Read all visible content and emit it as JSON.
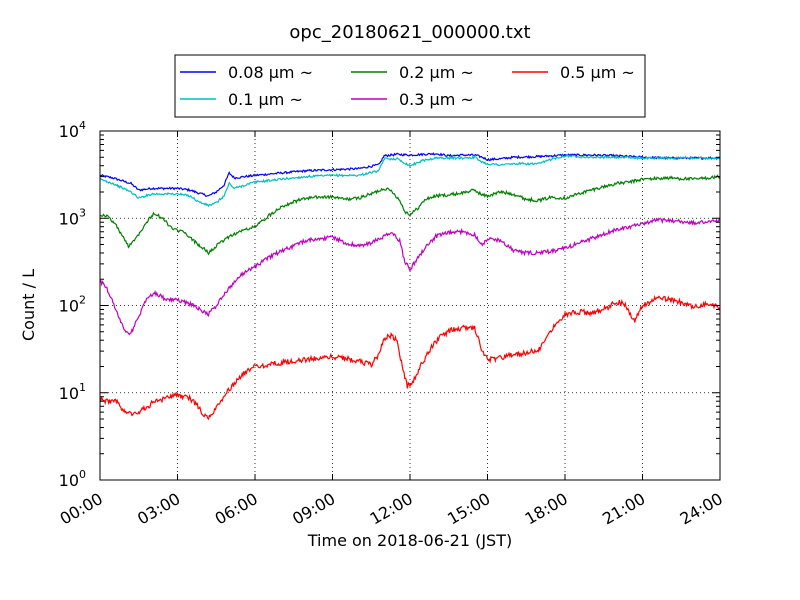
{
  "chart_data": {
    "type": "line",
    "title": "opc_20180621_000000.txt",
    "xlabel": "Time on 2018-06-21 (JST)",
    "ylabel": "Count / L",
    "x_range_hours": [
      0,
      24
    ],
    "ylim": [
      1,
      10000
    ],
    "y_scale": "log",
    "grid": true,
    "legend_position": "top-center",
    "legend_suffix": "~",
    "x_tick_labels": [
      "00:00",
      "03:00",
      "06:00",
      "09:00",
      "12:00",
      "15:00",
      "18:00",
      "21:00",
      "24:00"
    ],
    "y_tick_labels": [
      {
        "base": "10",
        "exp": "0"
      },
      {
        "base": "10",
        "exp": "1"
      },
      {
        "base": "10",
        "exp": "2"
      },
      {
        "base": "10",
        "exp": "3"
      },
      {
        "base": "10",
        "exp": "4"
      }
    ],
    "series": [
      {
        "name": "0.08 μm",
        "color": "#0000ff",
        "points": [
          [
            0,
            3100
          ],
          [
            0.5,
            2900
          ],
          [
            1.2,
            2500
          ],
          [
            1.5,
            2100
          ],
          [
            2,
            2200
          ],
          [
            3,
            2200
          ],
          [
            3.5,
            2100
          ],
          [
            3.8,
            1950
          ],
          [
            4.2,
            1800
          ],
          [
            4.5,
            2000
          ],
          [
            4.8,
            2400
          ],
          [
            5,
            3300
          ],
          [
            5.2,
            2900
          ],
          [
            6,
            3100
          ],
          [
            7,
            3300
          ],
          [
            8,
            3500
          ],
          [
            9,
            3600
          ],
          [
            10,
            3700
          ],
          [
            10.8,
            4100
          ],
          [
            11,
            5200
          ],
          [
            11.5,
            5400
          ],
          [
            12,
            5300
          ],
          [
            12.5,
            5400
          ],
          [
            13,
            5500
          ],
          [
            13.5,
            5200
          ],
          [
            14,
            5300
          ],
          [
            14.5,
            5300
          ],
          [
            14.8,
            5000
          ],
          [
            15,
            4700
          ],
          [
            15.5,
            4800
          ],
          [
            16,
            5000
          ],
          [
            17,
            5100
          ],
          [
            17.5,
            5200
          ],
          [
            18,
            5300
          ],
          [
            19,
            5300
          ],
          [
            20,
            5200
          ],
          [
            21,
            5000
          ],
          [
            22,
            4900
          ],
          [
            23,
            4900
          ],
          [
            24,
            4900
          ]
        ]
      },
      {
        "name": "0.1 μm",
        "color": "#00bfbf",
        "points": [
          [
            0,
            2800
          ],
          [
            0.5,
            2500
          ],
          [
            1.2,
            2000
          ],
          [
            1.5,
            1700
          ],
          [
            2,
            1900
          ],
          [
            3,
            1900
          ],
          [
            3.5,
            1800
          ],
          [
            3.8,
            1550
          ],
          [
            4.2,
            1400
          ],
          [
            4.5,
            1500
          ],
          [
            4.8,
            1800
          ],
          [
            5,
            2500
          ],
          [
            5.2,
            2200
          ],
          [
            6,
            2600
          ],
          [
            7,
            2800
          ],
          [
            8,
            3000
          ],
          [
            9,
            3100
          ],
          [
            10,
            3100
          ],
          [
            10.8,
            3500
          ],
          [
            11,
            4800
          ],
          [
            11.5,
            4800
          ],
          [
            12,
            4000
          ],
          [
            12.5,
            4600
          ],
          [
            13,
            4900
          ],
          [
            13.5,
            4900
          ],
          [
            14,
            4900
          ],
          [
            14.5,
            5000
          ],
          [
            14.8,
            4400
          ],
          [
            15,
            4200
          ],
          [
            15.5,
            4100
          ],
          [
            16,
            4200
          ],
          [
            17,
            4200
          ],
          [
            17.5,
            4800
          ],
          [
            18,
            5200
          ],
          [
            19,
            5000
          ],
          [
            20,
            5000
          ],
          [
            21,
            4900
          ],
          [
            22,
            4900
          ],
          [
            23,
            4900
          ],
          [
            24,
            4900
          ]
        ]
      },
      {
        "name": "0.2 μm",
        "color": "#008000",
        "points": [
          [
            0,
            1100
          ],
          [
            0.3,
            1050
          ],
          [
            0.6,
            850
          ],
          [
            0.9,
            600
          ],
          [
            1.1,
            480
          ],
          [
            1.4,
            600
          ],
          [
            1.8,
            900
          ],
          [
            2.1,
            1150
          ],
          [
            2.5,
            950
          ],
          [
            2.8,
            750
          ],
          [
            3.2,
            700
          ],
          [
            3.6,
            560
          ],
          [
            4,
            450
          ],
          [
            4.2,
            400
          ],
          [
            4.5,
            480
          ],
          [
            5,
            620
          ],
          [
            5.5,
            720
          ],
          [
            6,
            800
          ],
          [
            6.5,
            1050
          ],
          [
            7,
            1350
          ],
          [
            7.5,
            1550
          ],
          [
            8,
            1700
          ],
          [
            8.5,
            1750
          ],
          [
            9,
            1750
          ],
          [
            9.5,
            1650
          ],
          [
            10,
            1700
          ],
          [
            10.5,
            1900
          ],
          [
            11,
            2200
          ],
          [
            11.3,
            2050
          ],
          [
            11.6,
            1600
          ],
          [
            11.8,
            1200
          ],
          [
            12,
            1100
          ],
          [
            12.3,
            1300
          ],
          [
            12.6,
            1650
          ],
          [
            13,
            1800
          ],
          [
            13.5,
            1850
          ],
          [
            14,
            1950
          ],
          [
            14.5,
            2100
          ],
          [
            14.8,
            1850
          ],
          [
            15,
            1800
          ],
          [
            15.5,
            2000
          ],
          [
            16,
            1900
          ],
          [
            16.5,
            1650
          ],
          [
            17,
            1600
          ],
          [
            17.5,
            1750
          ],
          [
            18,
            1700
          ],
          [
            18.5,
            1900
          ],
          [
            19,
            2100
          ],
          [
            19.5,
            2300
          ],
          [
            20,
            2500
          ],
          [
            20.5,
            2600
          ],
          [
            21,
            2800
          ],
          [
            22,
            2900
          ],
          [
            23,
            2800
          ],
          [
            24,
            3000
          ]
        ]
      },
      {
        "name": "0.3 μm",
        "color": "#bf00bf",
        "points": [
          [
            0,
            190
          ],
          [
            0.2,
            170
          ],
          [
            0.5,
            110
          ],
          [
            0.8,
            65
          ],
          [
            1,
            50
          ],
          [
            1.2,
            48
          ],
          [
            1.5,
            75
          ],
          [
            1.8,
            120
          ],
          [
            2.1,
            140
          ],
          [
            2.5,
            120
          ],
          [
            3,
            115
          ],
          [
            3.5,
            105
          ],
          [
            4,
            85
          ],
          [
            4.2,
            80
          ],
          [
            4.5,
            100
          ],
          [
            5,
            160
          ],
          [
            5.5,
            230
          ],
          [
            6,
            280
          ],
          [
            6.5,
            350
          ],
          [
            7,
            420
          ],
          [
            7.5,
            480
          ],
          [
            8,
            560
          ],
          [
            8.5,
            580
          ],
          [
            9,
            610
          ],
          [
            9.5,
            520
          ],
          [
            10,
            480
          ],
          [
            10.5,
            520
          ],
          [
            11,
            620
          ],
          [
            11.3,
            680
          ],
          [
            11.6,
            550
          ],
          [
            11.8,
            320
          ],
          [
            12,
            260
          ],
          [
            12.3,
            350
          ],
          [
            12.6,
            470
          ],
          [
            13,
            620
          ],
          [
            13.5,
            680
          ],
          [
            14,
            700
          ],
          [
            14.5,
            650
          ],
          [
            14.8,
            500
          ],
          [
            15,
            580
          ],
          [
            15.5,
            560
          ],
          [
            16,
            430
          ],
          [
            16.5,
            400
          ],
          [
            17,
            400
          ],
          [
            17.5,
            420
          ],
          [
            18,
            450
          ],
          [
            18.5,
            520
          ],
          [
            19,
            580
          ],
          [
            19.5,
            650
          ],
          [
            20,
            750
          ],
          [
            20.5,
            800
          ],
          [
            21,
            850
          ],
          [
            21.5,
            950
          ],
          [
            22,
            950
          ],
          [
            23,
            880
          ],
          [
            24,
            950
          ]
        ]
      },
      {
        "name": "0.5 μm",
        "color": "#ff0000",
        "points": [
          [
            0,
            8.5
          ],
          [
            0.3,
            8
          ],
          [
            0.6,
            8
          ],
          [
            0.9,
            6.5
          ],
          [
            1.2,
            5.8
          ],
          [
            1.5,
            6
          ],
          [
            2,
            7.5
          ],
          [
            2.5,
            8.5
          ],
          [
            3,
            9.5
          ],
          [
            3.5,
            8.5
          ],
          [
            3.8,
            7
          ],
          [
            4,
            5.5
          ],
          [
            4.2,
            5.2
          ],
          [
            4.5,
            6.5
          ],
          [
            5,
            11
          ],
          [
            5.5,
            16
          ],
          [
            6,
            20
          ],
          [
            6.5,
            21
          ],
          [
            7,
            22
          ],
          [
            7.5,
            23
          ],
          [
            8,
            24
          ],
          [
            8.5,
            25
          ],
          [
            9,
            26
          ],
          [
            9.5,
            25
          ],
          [
            10,
            23
          ],
          [
            10.5,
            21
          ],
          [
            10.8,
            28
          ],
          [
            11,
            42
          ],
          [
            11.3,
            45
          ],
          [
            11.5,
            40
          ],
          [
            11.7,
            20
          ],
          [
            11.9,
            12
          ],
          [
            12.1,
            13
          ],
          [
            12.4,
            20
          ],
          [
            12.8,
            32
          ],
          [
            13.2,
            45
          ],
          [
            13.6,
            52
          ],
          [
            14,
            55
          ],
          [
            14.5,
            56
          ],
          [
            14.8,
            30
          ],
          [
            15,
            24
          ],
          [
            15.5,
            25
          ],
          [
            16,
            28
          ],
          [
            16.5,
            28
          ],
          [
            17,
            32
          ],
          [
            17.5,
            55
          ],
          [
            18,
            80
          ],
          [
            18.5,
            85
          ],
          [
            19,
            82
          ],
          [
            19.5,
            90
          ],
          [
            20,
            110
          ],
          [
            20.3,
            105
          ],
          [
            20.7,
            65
          ],
          [
            21,
            100
          ],
          [
            21.5,
            120
          ],
          [
            22,
            118
          ],
          [
            22.5,
            108
          ],
          [
            23,
            95
          ],
          [
            23.5,
            105
          ],
          [
            24,
            95
          ]
        ]
      }
    ]
  }
}
